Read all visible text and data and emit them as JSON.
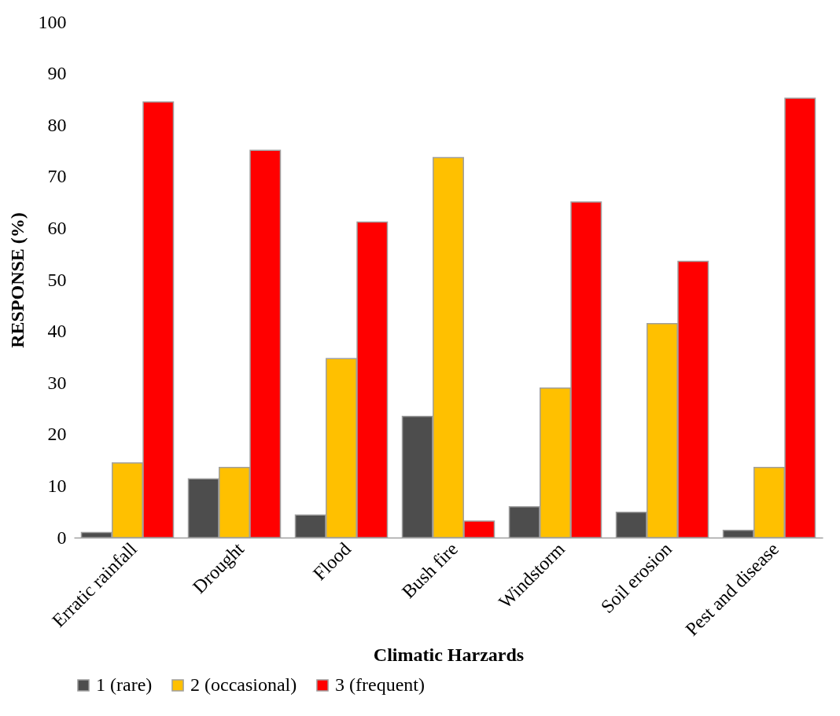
{
  "chart_data": {
    "type": "bar",
    "xlabel": "Climatic Harzards",
    "ylabel": "RESPONSE (%)",
    "categories": [
      "Erratic rainfall",
      "Drought",
      "Flood",
      "Bush fire",
      "Windstorm",
      "Soil erosion",
      "Pest and disease"
    ],
    "series": [
      {
        "name": "1 (rare)",
        "color": "#4d4d4d",
        "values": [
          1,
          11.4,
          4.4,
          23.5,
          6,
          4.9,
          1.4
        ]
      },
      {
        "name": "2 (occasional)",
        "color": "#ffc000",
        "values": [
          14.5,
          13.6,
          34.7,
          73.7,
          29,
          41.5,
          13.6
        ]
      },
      {
        "name": "3 (frequent)",
        "color": "#ff0000",
        "values": [
          84.5,
          75.1,
          61.2,
          3.2,
          65.1,
          53.6,
          85.2
        ]
      }
    ],
    "ylim": [
      0,
      100
    ],
    "yticks": [
      0,
      10,
      20,
      30,
      40,
      50,
      60,
      70,
      80,
      90,
      100
    ],
    "grid": false,
    "legend": "bottom"
  }
}
